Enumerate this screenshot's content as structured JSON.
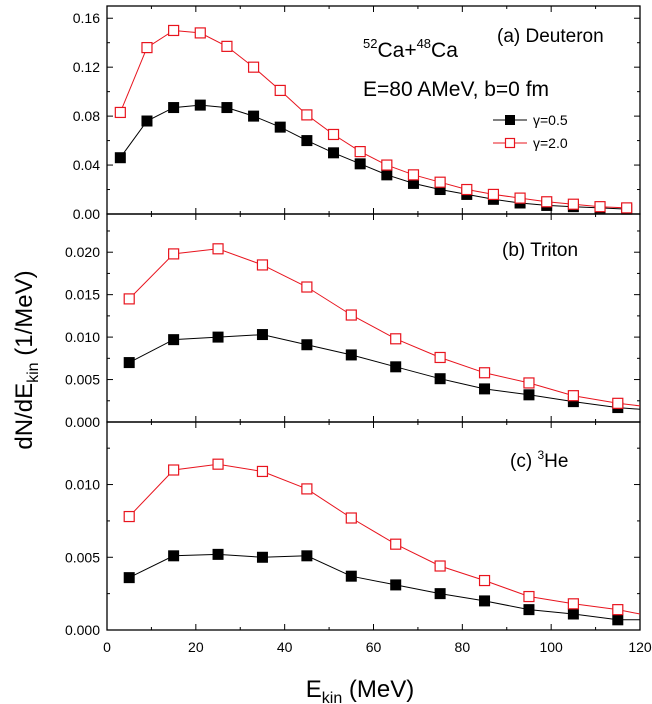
{
  "chart_data": {
    "type": "line",
    "x": [
      3,
      9,
      15,
      21,
      27,
      33,
      39,
      45,
      51,
      57,
      63,
      69,
      75,
      81,
      87,
      93,
      99,
      105,
      111,
      117
    ],
    "xlim": [
      0,
      120
    ],
    "xticks": [
      "0",
      "20",
      "40",
      "60",
      "80",
      "100",
      "120"
    ],
    "xlabel": {
      "main": "E",
      "sub": "kin",
      "unit": " (MeV)"
    },
    "ylabel": {
      "main": "dN/dE",
      "sub": "kin",
      "unit": "  (1/MeV)"
    },
    "annotation": {
      "reaction": {
        "sup1": "52",
        "a": "Ca+",
        "sup2": "48",
        "b": "Ca"
      },
      "conditions": "E=80 AMeV, b=0 fm"
    },
    "legend": {
      "position": "upper-right",
      "entries": [
        "γ=0.5",
        "γ=2.0"
      ]
    },
    "colors": {
      "gamma05": "#000000",
      "gamma20": "#e8141e"
    },
    "panels": [
      {
        "label": "(a) Deuteron",
        "ylim": [
          0,
          0.17
        ],
        "yticks": [
          {
            "value": 0,
            "label": "0.00"
          },
          {
            "value": 0.04,
            "label": "0.04"
          },
          {
            "value": 0.08,
            "label": "0.08"
          },
          {
            "value": 0.12,
            "label": "0.12"
          },
          {
            "value": 0.16,
            "label": "0.16"
          }
        ],
        "series": [
          {
            "name": "γ=0.5",
            "x": [
              3,
              9,
              15,
              21,
              27,
              33,
              39,
              45,
              51,
              57,
              63,
              69,
              75,
              81,
              87,
              93,
              99,
              105,
              111,
              117
            ],
            "y": [
              0.046,
              0.076,
              0.087,
              0.089,
              0.087,
              0.08,
              0.071,
              0.06,
              0.05,
              0.041,
              0.032,
              0.025,
              0.02,
              0.016,
              0.012,
              0.009,
              0.007,
              0.006,
              0.005,
              0.004
            ]
          },
          {
            "name": "γ=2.0",
            "x": [
              3,
              9,
              15,
              21,
              27,
              33,
              39,
              45,
              51,
              57,
              63,
              69,
              75,
              81,
              87,
              93,
              99,
              105,
              111,
              117
            ],
            "y": [
              0.083,
              0.136,
              0.15,
              0.148,
              0.137,
              0.12,
              0.101,
              0.081,
              0.065,
              0.051,
              0.04,
              0.032,
              0.026,
              0.02,
              0.016,
              0.013,
              0.01,
              0.008,
              0.006,
              0.005
            ]
          }
        ]
      },
      {
        "label": "(b) Triton",
        "ylim": [
          0,
          0.0245
        ],
        "yticks": [
          {
            "value": 0,
            "label": "0.000"
          },
          {
            "value": 0.005,
            "label": "0.005"
          },
          {
            "value": 0.01,
            "label": "0.010"
          },
          {
            "value": 0.015,
            "label": "0.015"
          },
          {
            "value": 0.02,
            "label": "0.020"
          }
        ],
        "series": [
          {
            "name": "γ=0.5",
            "x": [
              5,
              15,
              25,
              35,
              45,
              55,
              65,
              75,
              85,
              95,
              105,
              115,
              120
            ],
            "y": [
              0.007,
              0.0097,
              0.01,
              0.0103,
              0.0091,
              0.0079,
              0.0065,
              0.0051,
              0.0039,
              0.0032,
              0.0024,
              0.0017,
              0.0015
            ]
          },
          {
            "name": "γ=2.0",
            "x": [
              5,
              15,
              25,
              35,
              45,
              55,
              65,
              75,
              85,
              95,
              105,
              115,
              120
            ],
            "y": [
              0.0145,
              0.0198,
              0.0204,
              0.0185,
              0.0159,
              0.0126,
              0.0098,
              0.0076,
              0.0058,
              0.0046,
              0.0031,
              0.0022,
              0.0019
            ]
          }
        ]
      },
      {
        "label": "(c) ",
        "label_sup": "3",
        "label_tail": "He",
        "ylim": [
          0,
          0.0143
        ],
        "yticks": [
          {
            "value": 0,
            "label": "0.000"
          },
          {
            "value": 0.005,
            "label": "0.005"
          },
          {
            "value": 0.01,
            "label": "0.010"
          }
        ],
        "series": [
          {
            "name": "γ=0.5",
            "x": [
              5,
              15,
              25,
              35,
              45,
              55,
              65,
              75,
              85,
              95,
              105,
              115,
              120
            ],
            "y": [
              0.0036,
              0.0051,
              0.0052,
              0.005,
              0.0051,
              0.0037,
              0.0031,
              0.0025,
              0.002,
              0.0014,
              0.0011,
              0.0007,
              0.0007
            ]
          },
          {
            "name": "γ=2.0",
            "x": [
              5,
              15,
              25,
              35,
              45,
              55,
              65,
              75,
              85,
              95,
              105,
              115,
              120
            ],
            "y": [
              0.0078,
              0.011,
              0.0114,
              0.0109,
              0.0097,
              0.0077,
              0.0059,
              0.0044,
              0.0034,
              0.0023,
              0.0018,
              0.0014,
              0.0011
            ]
          }
        ]
      }
    ]
  }
}
